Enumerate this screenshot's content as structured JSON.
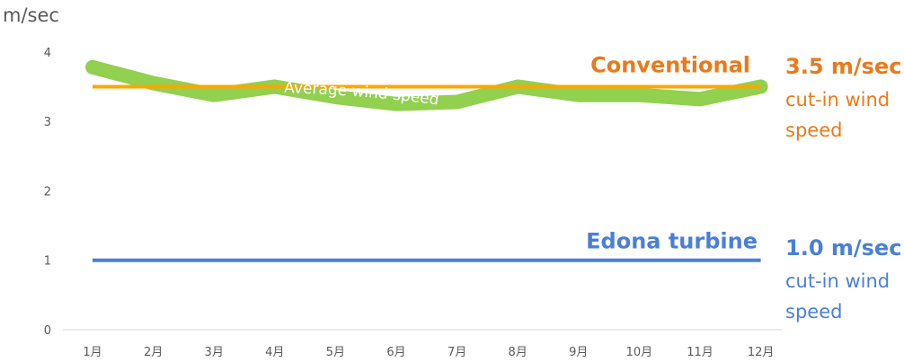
{
  "chart_data": {
    "type": "line",
    "ylabel": "m/sec",
    "ylim": [
      0,
      4
    ],
    "yticks": [
      0,
      1,
      2,
      3,
      4
    ],
    "categories": [
      "1月",
      "2月",
      "3月",
      "4月",
      "5月",
      "6月",
      "7月",
      "8月",
      "9月",
      "10月",
      "11月",
      "12月"
    ],
    "series": [
      {
        "name": "Average wind speed",
        "color": "#92d050",
        "values": [
          3.78,
          3.55,
          3.38,
          3.5,
          3.35,
          3.25,
          3.28,
          3.5,
          3.38,
          3.38,
          3.32,
          3.5
        ]
      },
      {
        "name": "Conventional",
        "color": "#e97a1a",
        "line_color": "#ffa500",
        "values": [
          3.5,
          3.5,
          3.5,
          3.5,
          3.5,
          3.5,
          3.5,
          3.5,
          3.5,
          3.5,
          3.5,
          3.5
        ],
        "cutin_value": "3.5 m/sec",
        "cutin_text1": "cut-in wind",
        "cutin_text2": "speed"
      },
      {
        "name": "Edona turbine",
        "color": "#4a7fd8",
        "values": [
          1.0,
          1.0,
          1.0,
          1.0,
          1.0,
          1.0,
          1.0,
          1.0,
          1.0,
          1.0,
          1.0,
          1.0
        ],
        "cutin_value": "1.0 m/sec",
        "cutin_text1": "cut-in wind",
        "cutin_text2": "speed"
      }
    ]
  }
}
